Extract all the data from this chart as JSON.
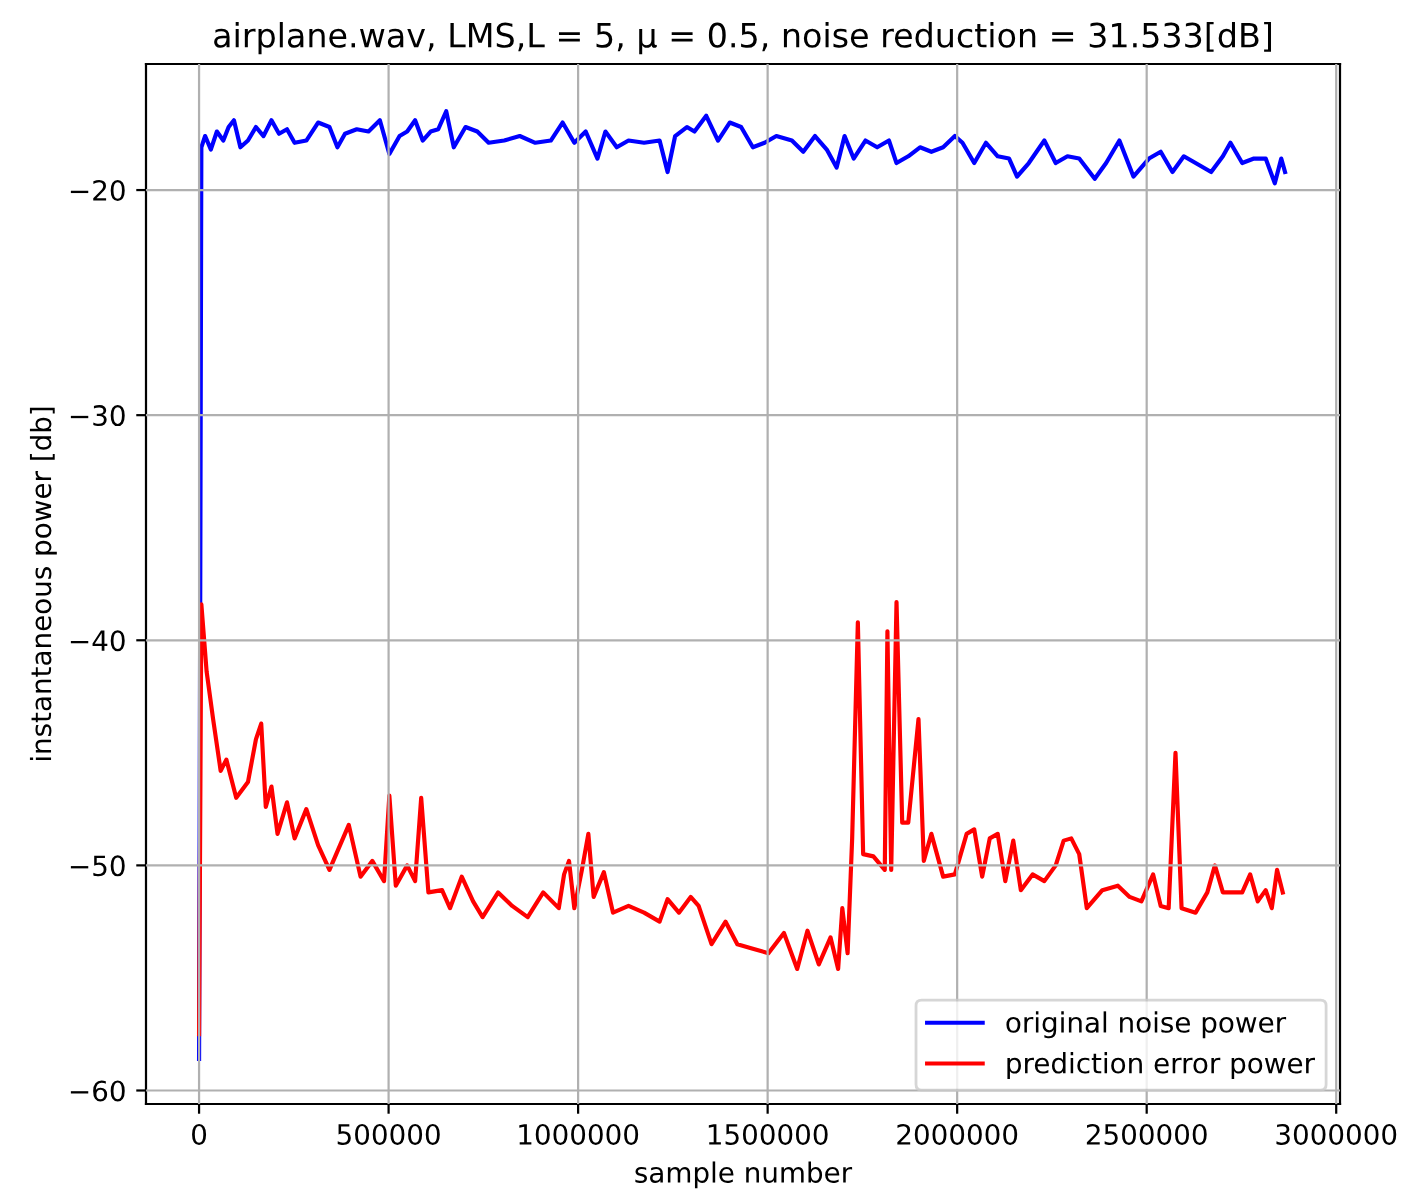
{
  "chart_data": {
    "type": "line",
    "title": "airplane.wav, LMS,L = 5, μ = 0.5, noise reduction = 31.533[dB]",
    "xlabel": "sample number",
    "ylabel": "instantaneous power [db]",
    "xlim": [
      -140000,
      3010000
    ],
    "ylim": [
      -60.6,
      -14.4
    ],
    "xticks": [
      0,
      500000,
      1000000,
      1500000,
      2000000,
      2500000,
      3000000
    ],
    "yticks": [
      {
        "value": -20,
        "label": "−20"
      },
      {
        "value": -30,
        "label": "−30"
      },
      {
        "value": -40,
        "label": "−40"
      },
      {
        "value": -50,
        "label": "−50"
      },
      {
        "value": -60,
        "label": "−60"
      }
    ],
    "grid": true,
    "legend": "bottom right",
    "line_style": "solid",
    "marker": "none",
    "series": [
      {
        "name": "original noise power",
        "color": "#0000ff",
        "x": [
          0,
          6000,
          16000,
          31000,
          47000,
          64000,
          78000,
          92000,
          109000,
          129000,
          150000,
          170000,
          191000,
          211000,
          232000,
          252000,
          283000,
          314000,
          344000,
          365000,
          385000,
          416000,
          447000,
          477000,
          502000,
          529000,
          549000,
          570000,
          590000,
          611000,
          631000,
          652000,
          672000,
          703000,
          734000,
          764000,
          805000,
          846000,
          887000,
          928000,
          959000,
          990000,
          1020000,
          1051000,
          1072000,
          1102000,
          1133000,
          1174000,
          1215000,
          1236000,
          1256000,
          1287000,
          1307000,
          1338000,
          1369000,
          1400000,
          1430000,
          1461000,
          1492000,
          1523000,
          1564000,
          1594000,
          1625000,
          1656000,
          1682000,
          1703000,
          1727000,
          1758000,
          1789000,
          1820000,
          1840000,
          1871000,
          1902000,
          1932000,
          1963000,
          1994000,
          2014000,
          2045000,
          2076000,
          2107000,
          2137000,
          2158000,
          2189000,
          2230000,
          2260000,
          2291000,
          2322000,
          2363000,
          2393000,
          2428000,
          2465000,
          2506000,
          2537000,
          2568000,
          2598000,
          2629000,
          2670000,
          2701000,
          2721000,
          2752000,
          2783000,
          2814000,
          2838000,
          2855000,
          2865000
        ],
        "values": [
          -58.6,
          -18.1,
          -17.6,
          -18.2,
          -17.4,
          -17.8,
          -17.2,
          -16.9,
          -18.1,
          -17.8,
          -17.2,
          -17.6,
          -16.9,
          -17.5,
          -17.3,
          -17.9,
          -17.8,
          -17.0,
          -17.2,
          -18.1,
          -17.5,
          -17.3,
          -17.4,
          -16.9,
          -18.4,
          -17.6,
          -17.4,
          -16.9,
          -17.8,
          -17.4,
          -17.3,
          -16.5,
          -18.1,
          -17.2,
          -17.4,
          -17.9,
          -17.8,
          -17.6,
          -17.9,
          -17.8,
          -17.0,
          -17.9,
          -17.4,
          -18.6,
          -17.4,
          -18.1,
          -17.8,
          -17.9,
          -17.8,
          -19.2,
          -17.6,
          -17.2,
          -17.4,
          -16.7,
          -17.8,
          -17.0,
          -17.2,
          -18.1,
          -17.9,
          -17.6,
          -17.8,
          -18.3,
          -17.6,
          -18.2,
          -19.0,
          -17.6,
          -18.6,
          -17.8,
          -18.1,
          -17.8,
          -18.8,
          -18.5,
          -18.1,
          -18.3,
          -18.1,
          -17.6,
          -17.9,
          -18.8,
          -17.9,
          -18.5,
          -18.6,
          -19.4,
          -18.8,
          -17.8,
          -18.8,
          -18.5,
          -18.6,
          -19.5,
          -18.8,
          -17.8,
          -19.4,
          -18.6,
          -18.3,
          -19.2,
          -18.5,
          -18.8,
          -19.2,
          -18.5,
          -17.9,
          -18.8,
          -18.6,
          -18.6,
          -19.7,
          -18.6,
          -19.2
        ]
      },
      {
        "name": "prediction error power",
        "color": "#ff0000",
        "x": [
          0,
          6000,
          20000,
          37000,
          57000,
          72000,
          98000,
          129000,
          150000,
          164000,
          176000,
          191000,
          207000,
          232000,
          252000,
          283000,
          314000,
          344000,
          395000,
          426000,
          457000,
          488000,
          502000,
          519000,
          549000,
          570000,
          586000,
          605000,
          641000,
          662000,
          693000,
          723000,
          748000,
          789000,
          826000,
          867000,
          908000,
          949000,
          963000,
          976000,
          990000,
          1010000,
          1027000,
          1041000,
          1068000,
          1092000,
          1133000,
          1174000,
          1215000,
          1236000,
          1266000,
          1297000,
          1318000,
          1352000,
          1389000,
          1420000,
          1461000,
          1502000,
          1543000,
          1578000,
          1605000,
          1635000,
          1666000,
          1686000,
          1697000,
          1711000,
          1723000,
          1738000,
          1752000,
          1779000,
          1809000,
          1816000,
          1826000,
          1840000,
          1855000,
          1871000,
          1898000,
          1912000,
          1932000,
          1963000,
          1994000,
          2025000,
          2045000,
          2066000,
          2086000,
          2107000,
          2127000,
          2148000,
          2168000,
          2199000,
          2230000,
          2260000,
          2281000,
          2301000,
          2322000,
          2342000,
          2383000,
          2424000,
          2455000,
          2486000,
          2517000,
          2537000,
          2558000,
          2576000,
          2592000,
          2629000,
          2660000,
          2680000,
          2701000,
          2752000,
          2773000,
          2793000,
          2814000,
          2830000,
          2844000,
          2859000
        ],
        "values": [
          -57.5,
          -38.4,
          -41.4,
          -43.5,
          -45.8,
          -45.3,
          -47.0,
          -46.3,
          -44.4,
          -43.7,
          -47.4,
          -46.5,
          -48.6,
          -47.2,
          -48.8,
          -47.5,
          -49.1,
          -50.2,
          -48.2,
          -50.5,
          -49.8,
          -50.7,
          -46.9,
          -50.9,
          -50.0,
          -50.7,
          -47.0,
          -51.2,
          -51.1,
          -51.9,
          -50.5,
          -51.6,
          -52.3,
          -51.2,
          -51.8,
          -52.3,
          -51.2,
          -51.9,
          -50.4,
          -49.8,
          -51.9,
          -50.2,
          -48.6,
          -51.4,
          -50.3,
          -52.1,
          -51.8,
          -52.1,
          -52.5,
          -51.5,
          -52.1,
          -51.4,
          -51.8,
          -53.5,
          -52.5,
          -53.5,
          -53.7,
          -53.9,
          -53.0,
          -54.6,
          -52.9,
          -54.4,
          -53.2,
          -54.6,
          -51.9,
          -53.9,
          -48.8,
          -39.2,
          -49.5,
          -49.6,
          -50.2,
          -39.6,
          -50.2,
          -38.3,
          -48.1,
          -48.1,
          -43.5,
          -49.8,
          -48.6,
          -50.5,
          -50.4,
          -48.6,
          -48.4,
          -50.5,
          -48.8,
          -48.6,
          -50.7,
          -48.9,
          -51.1,
          -50.4,
          -50.7,
          -50.0,
          -48.9,
          -48.8,
          -49.5,
          -51.9,
          -51.1,
          -50.9,
          -51.4,
          -51.6,
          -50.4,
          -51.8,
          -51.9,
          -45.0,
          -51.9,
          -52.1,
          -51.2,
          -50.0,
          -51.2,
          -51.2,
          -50.4,
          -51.6,
          -51.1,
          -51.9,
          -50.2,
          -51.2
        ]
      }
    ]
  }
}
